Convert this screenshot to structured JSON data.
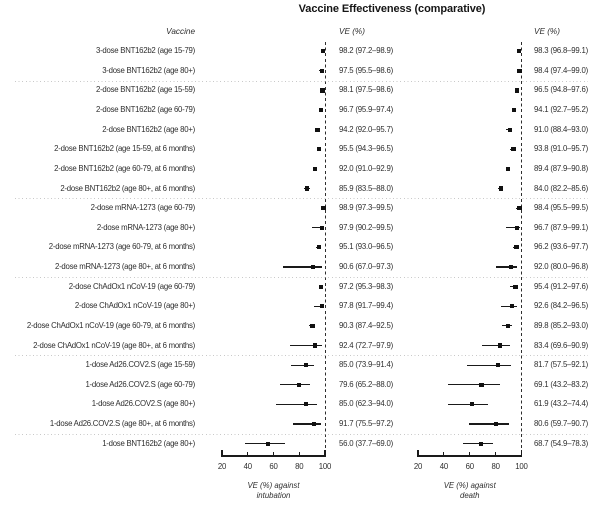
{
  "chart_data": {
    "type": "forest",
    "title": "Vaccine Effectiveness (comparative)",
    "row_header": "Vaccine",
    "value_header": "VE (%)",
    "x_ticks": [
      20,
      40,
      60,
      80,
      100
    ],
    "x_range": [
      20,
      100
    ],
    "reference_line": 100,
    "grid": "off",
    "panels": [
      {
        "key": "intubation",
        "axis_label_line1": "VE (%) against",
        "axis_label_line2": "intubation"
      },
      {
        "key": "death",
        "axis_label_line1": "VE (%) against",
        "axis_label_line2": "death"
      }
    ],
    "rows": [
      {
        "label": "3-dose BNT162b2 (age 15-79)",
        "intubation": {
          "ve": 98.2,
          "lo": 97.2,
          "hi": 98.9
        },
        "death": {
          "ve": 98.3,
          "lo": 96.8,
          "hi": 99.1
        }
      },
      {
        "label": "3-dose BNT162b2 (age 80+)",
        "intubation": {
          "ve": 97.5,
          "lo": 95.5,
          "hi": 98.6
        },
        "death": {
          "ve": 98.4,
          "lo": 97.4,
          "hi": 99.0
        }
      },
      {
        "label": "2-dose BNT162b2 (age 15-59)",
        "intubation": {
          "ve": 98.1,
          "lo": 97.5,
          "hi": 98.6
        },
        "death": {
          "ve": 96.5,
          "lo": 94.8,
          "hi": 97.6
        }
      },
      {
        "label": "2-dose BNT162b2 (age 60-79)",
        "intubation": {
          "ve": 96.7,
          "lo": 95.9,
          "hi": 97.4
        },
        "death": {
          "ve": 94.1,
          "lo": 92.7,
          "hi": 95.2
        }
      },
      {
        "label": "2-dose BNT162b2 (age 80+)",
        "intubation": {
          "ve": 94.2,
          "lo": 92.0,
          "hi": 95.7
        },
        "death": {
          "ve": 91.0,
          "lo": 88.4,
          "hi": 93.0
        }
      },
      {
        "label": "2-dose BNT162b2 (age 15-59, at 6 months)",
        "intubation": {
          "ve": 95.5,
          "lo": 94.3,
          "hi": 96.5
        },
        "death": {
          "ve": 93.8,
          "lo": 91.0,
          "hi": 95.7
        }
      },
      {
        "label": "2-dose BNT162b2 (age 60-79, at 6 months)",
        "intubation": {
          "ve": 92.0,
          "lo": 91.0,
          "hi": 92.9
        },
        "death": {
          "ve": 89.4,
          "lo": 87.9,
          "hi": 90.8
        }
      },
      {
        "label": "2-dose BNT162b2 (age 80+, at 6 months)",
        "intubation": {
          "ve": 85.9,
          "lo": 83.5,
          "hi": 88.0
        },
        "death": {
          "ve": 84.0,
          "lo": 82.2,
          "hi": 85.6
        }
      },
      {
        "label": "2-dose mRNA-1273 (age 60-79)",
        "intubation": {
          "ve": 98.9,
          "lo": 97.3,
          "hi": 99.5
        },
        "death": {
          "ve": 98.4,
          "lo": 95.5,
          "hi": 99.5
        }
      },
      {
        "label": "2-dose mRNA-1273 (age 80+)",
        "intubation": {
          "ve": 97.9,
          "lo": 90.2,
          "hi": 99.5
        },
        "death": {
          "ve": 96.7,
          "lo": 87.9,
          "hi": 99.1
        }
      },
      {
        "label": "2-dose mRNA-1273 (age 60-79, at 6 months)",
        "intubation": {
          "ve": 95.1,
          "lo": 93.0,
          "hi": 96.5
        },
        "death": {
          "ve": 96.2,
          "lo": 93.6,
          "hi": 97.7
        }
      },
      {
        "label": "2-dose mRNA-1273 (age 80+, at 6 months)",
        "intubation": {
          "ve": 90.6,
          "lo": 67.0,
          "hi": 97.3
        },
        "death": {
          "ve": 92.0,
          "lo": 80.0,
          "hi": 96.8
        }
      },
      {
        "label": "2-dose ChAdOx1 nCoV-19 (age 60-79)",
        "intubation": {
          "ve": 97.2,
          "lo": 95.3,
          "hi": 98.3
        },
        "death": {
          "ve": 95.4,
          "lo": 91.2,
          "hi": 97.6
        }
      },
      {
        "label": "2-dose ChAdOx1 nCoV-19 (age 80+)",
        "intubation": {
          "ve": 97.8,
          "lo": 91.7,
          "hi": 99.4
        },
        "death": {
          "ve": 92.6,
          "lo": 84.2,
          "hi": 96.5
        }
      },
      {
        "label": "2-dose ChAdOx1 nCoV-19 (age 60-79, at 6 months)",
        "intubation": {
          "ve": 90.3,
          "lo": 87.4,
          "hi": 92.5
        },
        "death": {
          "ve": 89.8,
          "lo": 85.2,
          "hi": 93.0
        }
      },
      {
        "label": "2-dose ChAdOx1 nCoV-19 (age 80+, at 6 months)",
        "intubation": {
          "ve": 92.4,
          "lo": 72.7,
          "hi": 97.9
        },
        "death": {
          "ve": 83.4,
          "lo": 69.6,
          "hi": 90.9
        }
      },
      {
        "label": "1-dose Ad26.COV2.S (age 15-59)",
        "intubation": {
          "ve": 85.0,
          "lo": 73.9,
          "hi": 91.4
        },
        "death": {
          "ve": 81.7,
          "lo": 57.5,
          "hi": 92.1
        }
      },
      {
        "label": "1-dose Ad26.COV2.S (age 60-79)",
        "intubation": {
          "ve": 79.6,
          "lo": 65.2,
          "hi": 88.0
        },
        "death": {
          "ve": 69.1,
          "lo": 43.2,
          "hi": 83.2
        }
      },
      {
        "label": "1-dose Ad26.COV2.S (age 80+)",
        "intubation": {
          "ve": 85.0,
          "lo": 62.3,
          "hi": 94.0
        },
        "death": {
          "ve": 61.9,
          "lo": 43.2,
          "hi": 74.4
        }
      },
      {
        "label": "1-dose Ad26.COV2.S (age 80+, at 6 months)",
        "intubation": {
          "ve": 91.7,
          "lo": 75.5,
          "hi": 97.2
        },
        "death": {
          "ve": 80.6,
          "lo": 59.7,
          "hi": 90.7
        }
      },
      {
        "label": "1-dose BNT162b2 (age 80+)",
        "intubation": {
          "ve": 56.0,
          "lo": 37.7,
          "hi": 69.0
        },
        "death": {
          "ve": 68.7,
          "lo": 54.9,
          "hi": 78.3
        }
      }
    ],
    "group_separators_after_row": [
      2,
      8,
      12,
      16,
      20
    ],
    "ci_text_format": "ve (lo–hi)"
  },
  "colors": {
    "text": "#2e2e2e",
    "title": "#151515",
    "line": "#1a1a1a",
    "marker": "#111111",
    "reference_line": "#2e2e2e",
    "separator": "#c9c9c9"
  }
}
